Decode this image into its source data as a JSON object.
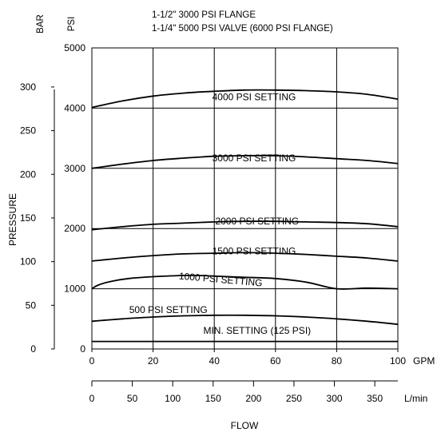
{
  "chart_data": {
    "type": "line",
    "title_lines": [
      "1-1/2\" 3000 PSI FLANGE",
      "1-1/4\" 5000 PSI VALVE (6000 PSI FLANGE)"
    ],
    "ylabel": "PRESSURE",
    "xlabel": "FLOW",
    "bar_axis": {
      "label": "BAR",
      "ticks": [
        0,
        50,
        100,
        150,
        200,
        250,
        300
      ]
    },
    "psi_axis": {
      "label": "PSI",
      "ticks": [
        0,
        1000,
        2000,
        3000,
        4000,
        5000
      ],
      "ylim": [
        0,
        5000
      ]
    },
    "gpm_axis": {
      "unit": "GPM",
      "ticks": [
        0,
        20,
        40,
        60,
        80,
        100
      ],
      "xlim": [
        0,
        100
      ]
    },
    "lmin_axis": {
      "unit": "L/min",
      "ticks": [
        0,
        50,
        100,
        150,
        200,
        250,
        300,
        350
      ]
    },
    "grid": true,
    "series": [
      {
        "name": "4000 PSI SETTING",
        "label_at": [
          53,
          4130
        ],
        "points": [
          [
            0,
            4010
          ],
          [
            10,
            4120
          ],
          [
            20,
            4200
          ],
          [
            30,
            4250
          ],
          [
            40,
            4280
          ],
          [
            50,
            4300
          ],
          [
            60,
            4300
          ],
          [
            70,
            4290
          ],
          [
            80,
            4270
          ],
          [
            90,
            4230
          ],
          [
            100,
            4150
          ]
        ]
      },
      {
        "name": "3000 PSI SETTING",
        "label_at": [
          53,
          3120
        ],
        "points": [
          [
            0,
            3000
          ],
          [
            10,
            3070
          ],
          [
            20,
            3130
          ],
          [
            30,
            3170
          ],
          [
            40,
            3200
          ],
          [
            50,
            3210
          ],
          [
            60,
            3210
          ],
          [
            70,
            3190
          ],
          [
            80,
            3160
          ],
          [
            90,
            3130
          ],
          [
            100,
            3080
          ]
        ]
      },
      {
        "name": "2000 PSI SETTING",
        "label_at": [
          54,
          2070
        ],
        "points": [
          [
            0,
            1980
          ],
          [
            10,
            2030
          ],
          [
            20,
            2070
          ],
          [
            30,
            2090
          ],
          [
            40,
            2110
          ],
          [
            50,
            2120
          ],
          [
            60,
            2120
          ],
          [
            70,
            2110
          ],
          [
            80,
            2100
          ],
          [
            90,
            2080
          ],
          [
            100,
            2030
          ]
        ]
      },
      {
        "name": "1500 PSI SETTING",
        "label_at": [
          53,
          1570
        ],
        "points": [
          [
            0,
            1460
          ],
          [
            10,
            1510
          ],
          [
            20,
            1550
          ],
          [
            30,
            1580
          ],
          [
            40,
            1590
          ],
          [
            50,
            1600
          ],
          [
            60,
            1590
          ],
          [
            70,
            1570
          ],
          [
            80,
            1540
          ],
          [
            90,
            1510
          ],
          [
            100,
            1460
          ]
        ]
      },
      {
        "name": "1000 PSI SETTING",
        "label_at": [
          42,
          1100
        ],
        "label_rotate": 5,
        "points": [
          [
            0,
            1000
          ],
          [
            2,
            1060
          ],
          [
            6,
            1120
          ],
          [
            12,
            1170
          ],
          [
            20,
            1200
          ],
          [
            30,
            1220
          ],
          [
            35,
            1220
          ],
          [
            40,
            1210
          ],
          [
            50,
            1190
          ],
          [
            60,
            1170
          ],
          [
            70,
            1110
          ],
          [
            80,
            1000
          ],
          [
            90,
            1010
          ],
          [
            100,
            1000
          ]
        ]
      },
      {
        "name": "500 PSI SETTING",
        "label_at": [
          25,
          600
        ],
        "points": [
          [
            0,
            460
          ],
          [
            10,
            500
          ],
          [
            20,
            530
          ],
          [
            30,
            550
          ],
          [
            40,
            560
          ],
          [
            50,
            560
          ],
          [
            60,
            550
          ],
          [
            70,
            530
          ],
          [
            80,
            500
          ],
          [
            90,
            460
          ],
          [
            100,
            410
          ]
        ]
      },
      {
        "name": "MIN. SETTING (125 PSI)",
        "label_at": [
          54,
          250
        ],
        "points": [
          [
            0,
            125
          ],
          [
            100,
            125
          ]
        ]
      }
    ]
  }
}
